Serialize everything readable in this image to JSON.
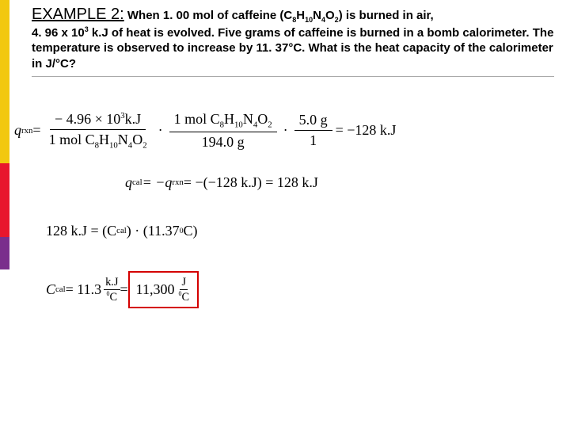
{
  "header": {
    "title": "EXAMPLE 2:",
    "line1_a": " When 1. 00 mol of caffeine (C",
    "f_c": "8",
    "line1_b": "H",
    "f_h": "10",
    "line1_c": "N",
    "f_n": "4",
    "line1_d": "O",
    "f_o": "2",
    "line1_e": ") is burned in air,",
    "line2_a": "4. 96 x 10",
    "exp3": "3",
    "line2_b": " k.J of heat is evolved.  Five grams of caffeine is burned in a bomb calorimeter.  The temperature is observed to increase by 11. 37°C.  ",
    "question": "What is the heat capacity of the calorimeter in J/°C?"
  },
  "eq1": {
    "lhs": "q",
    "lhs_sub": "rxn",
    "eq": " = ",
    "num1_a": "− 4.96",
    "num1_x": "×",
    "num1_b": "10",
    "num1_exp": "3",
    "num1_c": "k.J",
    "den1_a": "1 mol C",
    "den1_h": "H",
    "den1_n": "N",
    "den1_o": "O",
    "dot": "·",
    "num2": "1 mol C",
    "den2": "194.0 g",
    "num3": "5.0 g",
    "den3": "1",
    "rhs": " = −128 k.J"
  },
  "eq2": {
    "a": "q",
    "a_sub": "cal",
    "b": " = −q",
    "b_sub": "rxn",
    "c": " = −(−128 k.J) = 128 k.J"
  },
  "eq3": {
    "a": "128 k.J = (C",
    "a_sub": "cal",
    "b": ") · (11.37 ",
    "deg": "0",
    "c": "C)"
  },
  "eq4": {
    "a": "C",
    "a_sub": "cal",
    "b": " = 11.3 ",
    "unit_n1": "k.J",
    "unit_d1_deg": "0",
    "unit_d1": "C",
    "eq": " = ",
    "boxed_val": "11,300 ",
    "unit_n2": "J",
    "unit_d2_deg": "0",
    "unit_d2": "C"
  },
  "colors": {
    "box": "#d40000"
  }
}
